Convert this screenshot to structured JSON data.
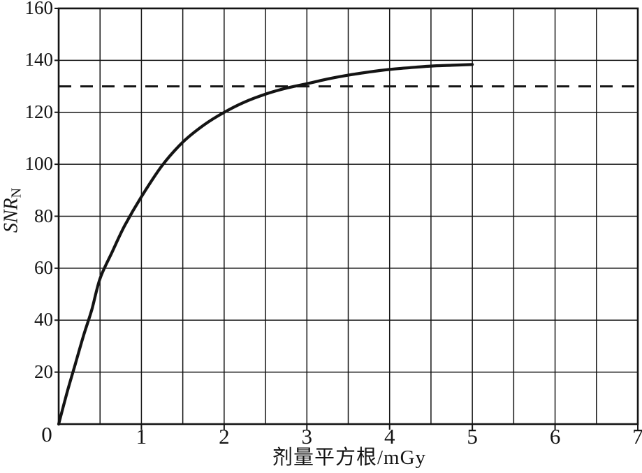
{
  "figure": {
    "background_color": "#ffffff",
    "line_color": "#141414",
    "grid_color": "#1a1a1a"
  },
  "chart_data": {
    "type": "line",
    "title": "",
    "xlabel": "剂量平方根/mGy",
    "ylabel_main": "SNR",
    "ylabel_sub": "N",
    "origin_label": "0",
    "xlim": [
      0,
      7
    ],
    "ylim": [
      0,
      160
    ],
    "x_tick_values": [
      1,
      2,
      3,
      4,
      5,
      6,
      7
    ],
    "x_tick_labels": [
      "1",
      "2",
      "3",
      "4",
      "5",
      "6",
      "7"
    ],
    "y_tick_values": [
      20,
      40,
      60,
      80,
      100,
      120,
      140,
      160
    ],
    "y_tick_labels": [
      "20",
      "40",
      "60",
      "80",
      "100",
      "120",
      "140",
      "160"
    ],
    "x_grid_step": 0.5,
    "y_grid_step": 20,
    "grid": "both",
    "legend": "none",
    "series": [
      {
        "name": "snr-vs-sqrt-dose-curve",
        "style": "solid",
        "stroke_width": 4.2,
        "points": [
          [
            0,
            0
          ],
          [
            0.1,
            12
          ],
          [
            0.2,
            23
          ],
          [
            0.3,
            34
          ],
          [
            0.4,
            44
          ],
          [
            0.5,
            56
          ],
          [
            0.65,
            66.5
          ],
          [
            0.8,
            76.5
          ],
          [
            1.0,
            87.5
          ],
          [
            1.25,
            99.5
          ],
          [
            1.5,
            108.5
          ],
          [
            1.75,
            115
          ],
          [
            2.0,
            120
          ],
          [
            2.25,
            124
          ],
          [
            2.5,
            127
          ],
          [
            2.75,
            129.3
          ],
          [
            3.0,
            131
          ],
          [
            3.25,
            132.8
          ],
          [
            3.5,
            134.3
          ],
          [
            3.75,
            135.5
          ],
          [
            4.0,
            136.5
          ],
          [
            4.25,
            137.2
          ],
          [
            4.5,
            137.8
          ],
          [
            4.75,
            138.1
          ],
          [
            5.0,
            138.4
          ]
        ]
      },
      {
        "name": "saturation-threshold-dashed-line",
        "style": "dashed",
        "stroke_width": 3,
        "dash_pattern": [
          18,
          13
        ],
        "y_const": 130,
        "x_start": 0,
        "x_end": 7
      }
    ]
  }
}
